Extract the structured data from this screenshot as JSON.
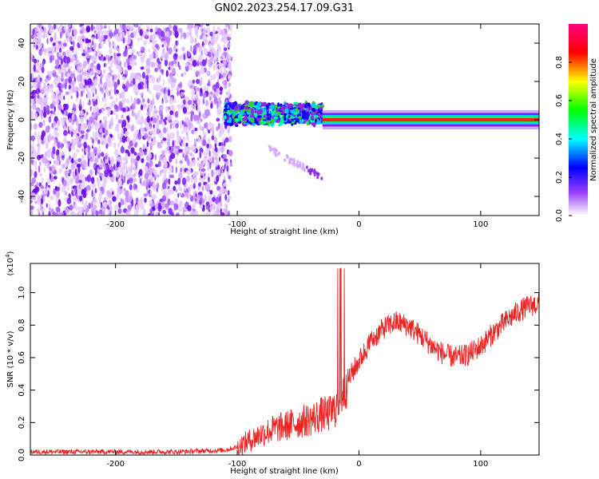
{
  "title": "GN02.2023.254.17.09.G31",
  "chart_data": [
    {
      "type": "heatmap",
      "xlabel": "Height of straight line (km)",
      "ylabel": "Frequency (Hz)",
      "xlim": [
        -270,
        148
      ],
      "ylim": [
        -50,
        50
      ],
      "xticks": [
        -200,
        -100,
        0,
        100
      ],
      "yticks": [
        -40,
        -20,
        0,
        20,
        40
      ],
      "colorbar": {
        "label": "Normalized spectral amplitude",
        "range": [
          0,
          1
        ],
        "ticks": [
          "0.0",
          "0.2",
          "0.4",
          "0.6",
          "0.8"
        ],
        "colors": [
          "#ffffff",
          "#7a00ff",
          "#0000ff",
          "#00ffff",
          "#00ff00",
          "#ffff00",
          "#ff0000",
          "#ff007f"
        ]
      },
      "features": [
        {
          "region": "noise",
          "x_range": [
            -270,
            -105
          ],
          "freq_range": [
            -50,
            50
          ],
          "amplitude": 0.1
        },
        {
          "region": "onset",
          "x_range": [
            -110,
            -30
          ],
          "freq_center": 3,
          "freq_halfwidth": 4,
          "amplitude": 0.5
        },
        {
          "region": "chirp",
          "x_range": [
            -75,
            -30
          ],
          "freq_range": [
            -15,
            -30
          ],
          "amplitude": 0.1
        },
        {
          "region": "tone",
          "x_range": [
            -30,
            148
          ],
          "freq_center": 0,
          "freq_halfwidth": 1,
          "amplitude": 0.9
        }
      ]
    },
    {
      "type": "line",
      "xlabel": "Height of straight line (km)",
      "ylabel": "SNR (10 * v/v)",
      "multiplier": "(x10",
      "multiplier_exp": "4",
      "multiplier_close": ")",
      "xlim": [
        -270,
        148
      ],
      "ylim": [
        0,
        1.18
      ],
      "xticks": [
        -200,
        -100,
        0,
        100
      ],
      "yticks": [
        "0.0",
        "0.2",
        "0.4",
        "0.6",
        "0.8",
        "1.0"
      ],
      "color": "#ee2222",
      "series": [
        {
          "x": [
            -270,
            -200,
            -150,
            -110,
            -100,
            -90,
            -80,
            -70,
            -60,
            -50,
            -40,
            -30,
            -25,
            -20,
            -15,
            -10,
            0,
            10,
            20,
            30,
            40,
            50,
            60,
            70,
            80,
            90,
            100,
            110,
            120,
            130,
            140,
            148
          ],
          "y": [
            0.02,
            0.02,
            0.02,
            0.03,
            0.05,
            0.09,
            0.13,
            0.16,
            0.18,
            0.2,
            0.22,
            0.25,
            0.25,
            0.28,
            0.35,
            0.45,
            0.58,
            0.7,
            0.78,
            0.82,
            0.8,
            0.74,
            0.67,
            0.62,
            0.6,
            0.62,
            0.67,
            0.75,
            0.82,
            0.88,
            0.92,
            0.93
          ]
        }
      ]
    }
  ]
}
